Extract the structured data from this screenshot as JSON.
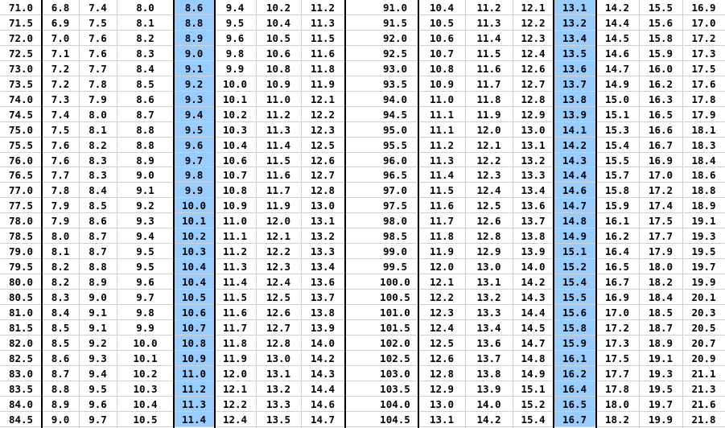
{
  "colors": {
    "highlight": "#99ccff",
    "grid": "#d0d0d0",
    "border": "#000000"
  },
  "left_table": {
    "highlight_col": 4,
    "rows": [
      [
        "71.0",
        "6.8",
        "7.4",
        "8.0",
        "8.6",
        "9.4",
        "10.2",
        "11.2"
      ],
      [
        "71.5",
        "6.9",
        "7.5",
        "8.1",
        "8.8",
        "9.5",
        "10.4",
        "11.3"
      ],
      [
        "72.0",
        "7.0",
        "7.6",
        "8.2",
        "8.9",
        "9.6",
        "10.5",
        "11.5"
      ],
      [
        "72.5",
        "7.1",
        "7.6",
        "8.3",
        "9.0",
        "9.8",
        "10.6",
        "11.6"
      ],
      [
        "73.0",
        "7.2",
        "7.7",
        "8.4",
        "9.1",
        "9.9",
        "10.8",
        "11.8"
      ],
      [
        "73.5",
        "7.2",
        "7.8",
        "8.5",
        "9.2",
        "10.0",
        "10.9",
        "11.9"
      ],
      [
        "74.0",
        "7.3",
        "7.9",
        "8.6",
        "9.3",
        "10.1",
        "11.0",
        "12.1"
      ],
      [
        "74.5",
        "7.4",
        "8.0",
        "8.7",
        "9.4",
        "10.2",
        "11.2",
        "12.2"
      ],
      [
        "75.0",
        "7.5",
        "8.1",
        "8.8",
        "9.5",
        "10.3",
        "11.3",
        "12.3"
      ],
      [
        "75.5",
        "7.6",
        "8.2",
        "8.8",
        "9.6",
        "10.4",
        "11.4",
        "12.5"
      ],
      [
        "76.0",
        "7.6",
        "8.3",
        "8.9",
        "9.7",
        "10.6",
        "11.5",
        "12.6"
      ],
      [
        "76.5",
        "7.7",
        "8.3",
        "9.0",
        "9.8",
        "10.7",
        "11.6",
        "12.7"
      ],
      [
        "77.0",
        "7.8",
        "8.4",
        "9.1",
        "9.9",
        "10.8",
        "11.7",
        "12.8"
      ],
      [
        "77.5",
        "7.9",
        "8.5",
        "9.2",
        "10.0",
        "10.9",
        "11.9",
        "13.0"
      ],
      [
        "78.0",
        "7.9",
        "8.6",
        "9.3",
        "10.1",
        "11.0",
        "12.0",
        "13.1"
      ],
      [
        "78.5",
        "8.0",
        "8.7",
        "9.4",
        "10.2",
        "11.1",
        "12.1",
        "13.2"
      ],
      [
        "79.0",
        "8.1",
        "8.7",
        "9.5",
        "10.3",
        "11.2",
        "12.2",
        "13.3"
      ],
      [
        "79.5",
        "8.2",
        "8.8",
        "9.5",
        "10.4",
        "11.3",
        "12.3",
        "13.4"
      ],
      [
        "80.0",
        "8.2",
        "8.9",
        "9.6",
        "10.4",
        "11.4",
        "12.4",
        "13.6"
      ],
      [
        "80.5",
        "8.3",
        "9.0",
        "9.7",
        "10.5",
        "11.5",
        "12.5",
        "13.7"
      ],
      [
        "81.0",
        "8.4",
        "9.1",
        "9.8",
        "10.6",
        "11.6",
        "12.6",
        "13.8"
      ],
      [
        "81.5",
        "8.5",
        "9.1",
        "9.9",
        "10.7",
        "11.7",
        "12.7",
        "13.9"
      ],
      [
        "82.0",
        "8.5",
        "9.2",
        "10.0",
        "10.8",
        "11.8",
        "12.8",
        "14.0"
      ],
      [
        "82.5",
        "8.6",
        "9.3",
        "10.1",
        "10.9",
        "11.9",
        "13.0",
        "14.2"
      ],
      [
        "83.0",
        "8.7",
        "9.4",
        "10.2",
        "11.0",
        "12.0",
        "13.1",
        "14.3"
      ],
      [
        "83.5",
        "8.8",
        "9.5",
        "10.3",
        "11.2",
        "12.1",
        "13.2",
        "14.4"
      ],
      [
        "84.0",
        "8.9",
        "9.6",
        "10.4",
        "11.3",
        "12.2",
        "13.3",
        "14.6"
      ],
      [
        "84.5",
        "9.0",
        "9.7",
        "10.5",
        "11.4",
        "12.4",
        "13.5",
        "14.7"
      ]
    ]
  },
  "right_table": {
    "highlight_col": 4,
    "rows": [
      [
        "91.0",
        "10.4",
        "11.2",
        "12.1",
        "13.1",
        "14.2",
        "15.5",
        "16.9"
      ],
      [
        "91.5",
        "10.5",
        "11.3",
        "12.2",
        "13.2",
        "14.4",
        "15.6",
        "17.0"
      ],
      [
        "92.0",
        "10.6",
        "11.4",
        "12.3",
        "13.4",
        "14.5",
        "15.8",
        "17.2"
      ],
      [
        "92.5",
        "10.7",
        "11.5",
        "12.4",
        "13.5",
        "14.6",
        "15.9",
        "17.3"
      ],
      [
        "93.0",
        "10.8",
        "11.6",
        "12.6",
        "13.6",
        "14.7",
        "16.0",
        "17.5"
      ],
      [
        "93.5",
        "10.9",
        "11.7",
        "12.7",
        "13.7",
        "14.9",
        "16.2",
        "17.6"
      ],
      [
        "94.0",
        "11.0",
        "11.8",
        "12.8",
        "13.8",
        "15.0",
        "16.3",
        "17.8"
      ],
      [
        "94.5",
        "11.1",
        "11.9",
        "12.9",
        "13.9",
        "15.1",
        "16.5",
        "17.9"
      ],
      [
        "95.0",
        "11.1",
        "12.0",
        "13.0",
        "14.1",
        "15.3",
        "16.6",
        "18.1"
      ],
      [
        "95.5",
        "11.2",
        "12.1",
        "13.1",
        "14.2",
        "15.4",
        "16.7",
        "18.3"
      ],
      [
        "96.0",
        "11.3",
        "12.2",
        "13.2",
        "14.3",
        "15.5",
        "16.9",
        "18.4"
      ],
      [
        "96.5",
        "11.4",
        "12.3",
        "13.3",
        "14.4",
        "15.7",
        "17.0",
        "18.6"
      ],
      [
        "97.0",
        "11.5",
        "12.4",
        "13.4",
        "14.6",
        "15.8",
        "17.2",
        "18.8"
      ],
      [
        "97.5",
        "11.6",
        "12.5",
        "13.6",
        "14.7",
        "15.9",
        "17.4",
        "18.9"
      ],
      [
        "98.0",
        "11.7",
        "12.6",
        "13.7",
        "14.8",
        "16.1",
        "17.5",
        "19.1"
      ],
      [
        "98.5",
        "11.8",
        "12.8",
        "13.8",
        "14.9",
        "16.2",
        "17.7",
        "19.3"
      ],
      [
        "99.0",
        "11.9",
        "12.9",
        "13.9",
        "15.1",
        "16.4",
        "17.9",
        "19.5"
      ],
      [
        "99.5",
        "12.0",
        "13.0",
        "14.0",
        "15.2",
        "16.5",
        "18.0",
        "19.7"
      ],
      [
        "100.0",
        "12.1",
        "13.1",
        "14.2",
        "15.4",
        "16.7",
        "18.2",
        "19.9"
      ],
      [
        "100.5",
        "12.2",
        "13.2",
        "14.3",
        "15.5",
        "16.9",
        "18.4",
        "20.1"
      ],
      [
        "101.0",
        "12.3",
        "13.3",
        "14.4",
        "15.6",
        "17.0",
        "18.5",
        "20.3"
      ],
      [
        "101.5",
        "12.4",
        "13.4",
        "14.5",
        "15.8",
        "17.2",
        "18.7",
        "20.5"
      ],
      [
        "102.0",
        "12.5",
        "13.6",
        "14.7",
        "15.9",
        "17.3",
        "18.9",
        "20.7"
      ],
      [
        "102.5",
        "12.6",
        "13.7",
        "14.8",
        "16.1",
        "17.5",
        "19.1",
        "20.9"
      ],
      [
        "103.0",
        "12.8",
        "13.8",
        "14.9",
        "16.2",
        "17.7",
        "19.3",
        "21.1"
      ],
      [
        "103.5",
        "12.9",
        "13.9",
        "15.1",
        "16.4",
        "17.8",
        "19.5",
        "21.3"
      ],
      [
        "104.0",
        "13.0",
        "14.0",
        "15.2",
        "16.5",
        "18.0",
        "19.7",
        "21.6"
      ],
      [
        "104.5",
        "13.1",
        "14.2",
        "15.4",
        "16.7",
        "18.2",
        "19.9",
        "21.8"
      ]
    ]
  }
}
